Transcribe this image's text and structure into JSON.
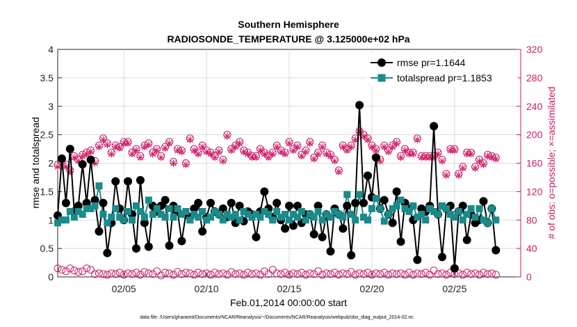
{
  "chart_data": {
    "type": "line",
    "title": [
      "Southern Hemisphere",
      "RADIOSONDE_TEMPERATURE @ 3.125000e+02 hPa"
    ],
    "xlabel": "Feb.01,2014 00:00:00 start",
    "ylabel": "rmse and totalspread",
    "ylabel_right": "# of obs: o=possible; ×=assimilated",
    "footer": "data file: /Users/gharamti/Documents/NCAR/Reanalysis/~/Documents/NCAR/Reanalysis/webpub/obs_diag_output_2014-02.nc",
    "xlim": [
      1,
      29
    ],
    "ylim": [
      0,
      4
    ],
    "ylim_right": [
      0,
      320
    ],
    "x_ticks": [
      5,
      10,
      15,
      20,
      25
    ],
    "x_tick_labels": [
      "02/05",
      "02/10",
      "02/15",
      "02/20",
      "02/25"
    ],
    "y_ticks": [
      0,
      0.5,
      1,
      1.5,
      2,
      2.5,
      3,
      3.5,
      4
    ],
    "y_tick_labels": [
      "0",
      "0.5",
      "1",
      "1.5",
      "2",
      "2.5",
      "3",
      "3.5",
      "4"
    ],
    "y_right_ticks": [
      0,
      40,
      80,
      120,
      160,
      200,
      240,
      280,
      320
    ],
    "y_right_tick_labels": [
      "0",
      "40",
      "80",
      "120",
      "160",
      "200",
      "240",
      "280",
      "320"
    ],
    "legend": {
      "placement": "top-right",
      "entries": [
        "rmse pr=1.1644",
        "totalspread pr=1.1853"
      ]
    },
    "colors": {
      "rmse": "#000000",
      "totalspread": "#1a8a8a",
      "obs": "#cc1a66",
      "axis": "#262626"
    },
    "x_start": 1.0,
    "x_step": 0.25,
    "series": [
      {
        "name": "rmse",
        "values": [
          1.08,
          2.08,
          1.3,
          2.25,
          1.15,
          1.25,
          1.98,
          1.3,
          2.06,
          1.35,
          0.8,
          1.3,
          0.42,
          0.95,
          1.68,
          1.2,
          1.0,
          1.68,
          1.1,
          0.5,
          1.7,
          0.95,
          0.53,
          1.25,
          1.15,
          1.25,
          1.35,
          0.55,
          1.25,
          1.15,
          0.63,
          1.1,
          1.05,
          1.2,
          1.3,
          0.8,
          1.05,
          1.3,
          1.15,
          1.1,
          1.2,
          1.05,
          1.3,
          0.95,
          1.25,
          0.98,
          1.15,
          1.1,
          0.7,
          1.15,
          1.5,
          1.2,
          1.05,
          1.3,
          1.0,
          0.85,
          1.25,
          0.9,
          1.25,
          0.95,
          1.1,
          1.1,
          0.75,
          1.25,
          0.7,
          1.1,
          0.45,
          1.2,
          1.1,
          0.85,
          1.25,
          0.38,
          1.3,
          3.02,
          1.3,
          1.78,
          1.4,
          2.1,
          1.2,
          1.35,
          1.1,
          0.95,
          1.5,
          0.62,
          1.3,
          1.2,
          1.0,
          0.3,
          1.2,
          1.15,
          1.25,
          2.65,
          1.1,
          0.35,
          1.2,
          1.25,
          0.15,
          1.15,
          1.25,
          0.65,
          1.1,
          0.95,
          1.0,
          1.33,
          0.95,
          1.2,
          0.47
        ]
      },
      {
        "name": "totalspread",
        "values": [
          0.95,
          1.0,
          1.0,
          1.15,
          1.05,
          1.15,
          1.1,
          1.2,
          1.2,
          1.25,
          1.6,
          1.1,
          0.95,
          1.05,
          1.2,
          1.05,
          1.0,
          1.15,
          1.0,
          1.25,
          1.15,
          1.05,
          1.35,
          1.1,
          1.2,
          1.1,
          1.05,
          1.2,
          1.05,
          1.2,
          1.1,
          1.15,
          1.0,
          1.1,
          1.05,
          1.15,
          1.0,
          1.05,
          1.15,
          1.1,
          1.0,
          1.1,
          1.05,
          1.1,
          1.0,
          1.15,
          1.1,
          1.05,
          1.1,
          1.05,
          1.15,
          1.1,
          1.0,
          1.15,
          1.05,
          1.1,
          1.0,
          1.1,
          1.05,
          1.15,
          1.0,
          1.1,
          1.05,
          1.15,
          1.0,
          1.1,
          1.05,
          1.15,
          1.1,
          1.05,
          1.45,
          1.1,
          1.0,
          1.45,
          1.05,
          1.0,
          1.2,
          1.38,
          1.2,
          0.98,
          1.1,
          1.2,
          1.25,
          1.35,
          1.2,
          1.15,
          1.25,
          1.05,
          1.1,
          1.0,
          1.2,
          1.15,
          1.1,
          1.25,
          1.2,
          1.1,
          1.05,
          1.15,
          1.0,
          1.1,
          1.2,
          1.05,
          1.2,
          1.0,
          0.95,
          1.2,
          1.0
        ]
      },
      {
        "name": "obs_possible",
        "axis": "right",
        "values": [
          158,
          162,
          158,
          150,
          170,
          165,
          172,
          175,
          178,
          163,
          185,
          195,
          188,
          175,
          185,
          183,
          190,
          190,
          175,
          180,
          170,
          185,
          188,
          175,
          180,
          170,
          183,
          190,
          162,
          180,
          178,
          160,
          195,
          180,
          175,
          185,
          178,
          175,
          170,
          178,
          165,
          200,
          180,
          185,
          190,
          178,
          175,
          170,
          170,
          180,
          175,
          170,
          175,
          185,
          178,
          175,
          190,
          180,
          185,
          172,
          178,
          190,
          168,
          175,
          185,
          175,
          172,
          165,
          150,
          185,
          180,
          185,
          195,
          205,
          200,
          195,
          185,
          180,
          165,
          185,
          178,
          185,
          190,
          170,
          180,
          175,
          175,
          195,
          170,
          170,
          170,
          170,
          175,
          165,
          145,
          180,
          180,
          145,
          155,
          175,
          175,
          155,
          165,
          160,
          172,
          170,
          168
        ]
      },
      {
        "name": "obs_assimilated",
        "axis": "right",
        "values": [
          155,
          160,
          155,
          148,
          168,
          163,
          170,
          173,
          176,
          160,
          183,
          193,
          186,
          173,
          183,
          181,
          188,
          188,
          173,
          178,
          168,
          183,
          186,
          173,
          178,
          168,
          181,
          188,
          160,
          178,
          176,
          158,
          193,
          178,
          173,
          183,
          176,
          173,
          168,
          176,
          163,
          198,
          178,
          183,
          188,
          176,
          173,
          168,
          168,
          178,
          173,
          168,
          173,
          183,
          176,
          173,
          188,
          178,
          183,
          170,
          176,
          188,
          166,
          173,
          183,
          173,
          170,
          163,
          148,
          183,
          178,
          183,
          193,
          203,
          198,
          193,
          183,
          178,
          163,
          183,
          176,
          183,
          188,
          168,
          178,
          173,
          173,
          193,
          168,
          168,
          168,
          168,
          173,
          163,
          143,
          178,
          178,
          143,
          153,
          173,
          173,
          153,
          163,
          158,
          170,
          168,
          166
        ]
      },
      {
        "name": "obs_low",
        "axis": "right",
        "values": [
          12,
          10,
          8,
          12,
          9,
          7,
          8,
          12,
          10,
          4,
          5,
          4,
          3,
          5,
          4,
          6,
          3,
          5,
          4,
          6,
          3,
          7,
          5,
          4,
          8,
          2,
          6,
          5,
          3,
          7,
          4,
          6,
          5,
          3,
          6,
          4,
          5,
          3,
          6,
          4,
          5,
          3,
          7,
          4,
          5,
          3,
          6,
          4,
          5,
          3,
          8,
          4,
          10,
          5,
          4,
          6,
          3,
          5,
          4,
          6,
          3,
          5,
          4,
          8,
          3,
          5,
          4,
          6,
          3,
          5,
          4,
          7,
          3,
          5,
          4,
          6,
          3,
          5,
          4,
          6,
          3,
          5,
          4,
          5,
          3,
          6,
          3,
          5,
          4,
          6,
          3,
          9,
          4,
          5,
          3,
          6,
          4,
          5,
          3,
          6,
          4,
          5,
          3,
          6,
          4,
          5,
          3
        ]
      }
    ]
  }
}
